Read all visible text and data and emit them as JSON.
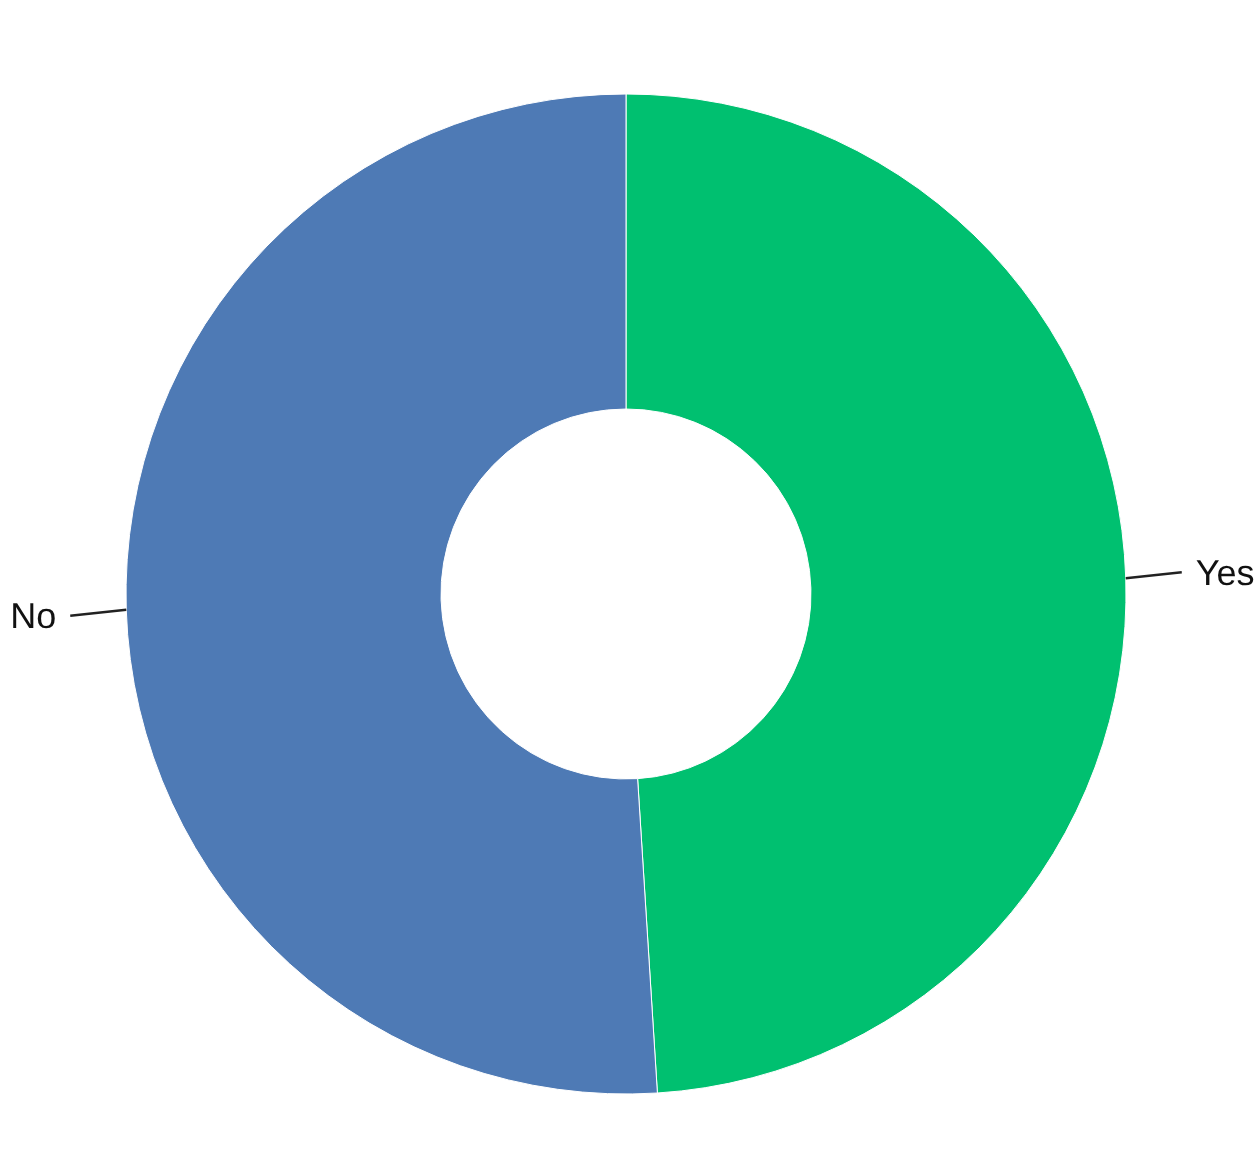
{
  "chart_data": {
    "type": "donut",
    "categories": [
      "Yes",
      "No"
    ],
    "values": [
      49,
      51
    ],
    "colors": [
      "#00c070",
      "#4e7ab5"
    ]
  }
}
